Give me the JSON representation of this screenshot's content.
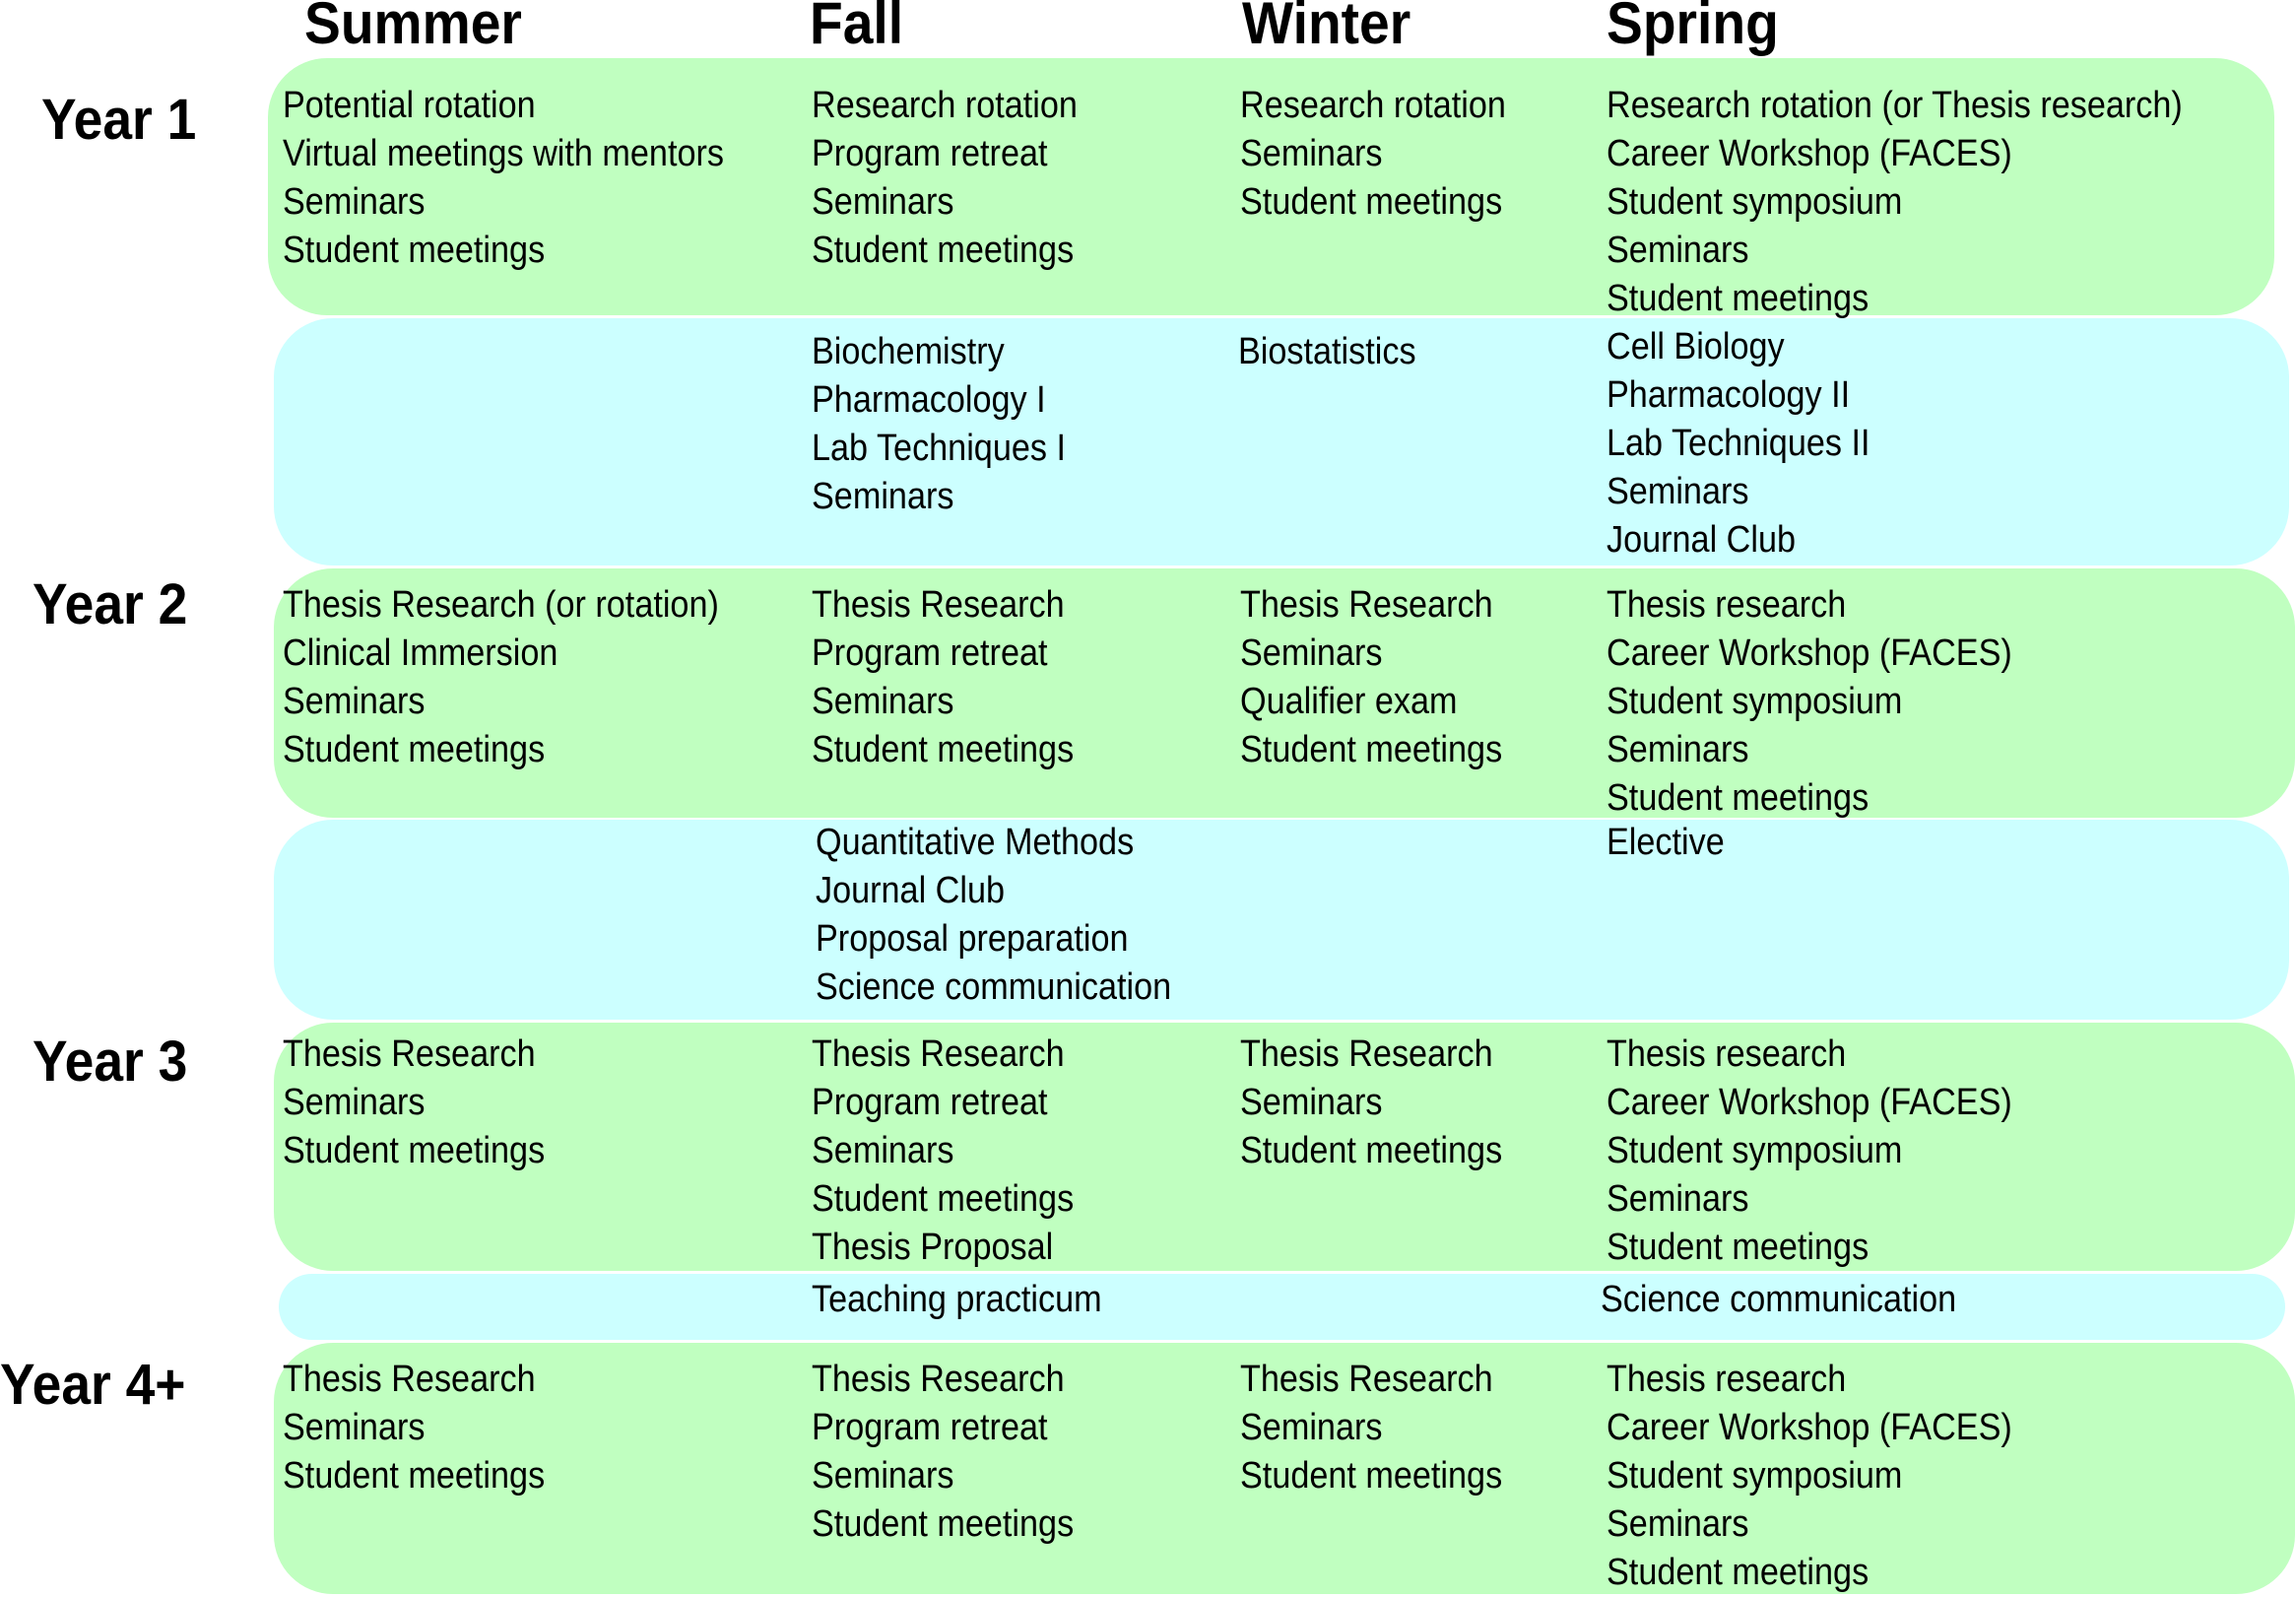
{
  "colors": {
    "activities_band": "#c0ffc0",
    "courses_band": "#ccffff"
  },
  "seasons": [
    "Summer",
    "Fall",
    "Winter",
    "Spring"
  ],
  "years": [
    "Year 1",
    "Year 2",
    "Year 3",
    "Year 4+"
  ],
  "rows": [
    {
      "type": "activities",
      "year": "Year 1",
      "cells": [
        [
          "Potential rotation",
          "Virtual meetings with mentors",
          "Seminars",
          "Student meetings"
        ],
        [
          "Research rotation",
          "Program retreat",
          "Seminars",
          "Student meetings"
        ],
        [
          "Research rotation",
          "Seminars",
          "Student meetings"
        ],
        [
          "Research rotation (or Thesis research)",
          "Career Workshop (FACES)",
          "Student symposium",
          "Seminars",
          "Student meetings"
        ]
      ]
    },
    {
      "type": "courses",
      "year": "Year 1",
      "cells": [
        [],
        [
          "Biochemistry",
          "Pharmacology I",
          "Lab Techniques I",
          "Seminars"
        ],
        [
          "Biostatistics"
        ],
        [
          "Cell Biology",
          "Pharmacology II",
          "Lab Techniques II",
          "Seminars",
          "Journal Club"
        ]
      ]
    },
    {
      "type": "activities",
      "year": "Year 2",
      "cells": [
        [
          "Thesis Research (or rotation)",
          "Clinical Immersion",
          "Seminars",
          "Student meetings"
        ],
        [
          "Thesis Research",
          "Program retreat",
          "Seminars",
          "Student meetings"
        ],
        [
          "Thesis Research",
          "Seminars",
          "Qualifier exam",
          "Student meetings"
        ],
        [
          "Thesis research",
          "Career Workshop (FACES)",
          "Student symposium",
          "Seminars",
          "Student meetings"
        ]
      ]
    },
    {
      "type": "courses",
      "year": "Year 2",
      "cells": [
        [],
        [
          "Quantitative Methods",
          "Journal Club",
          "Proposal preparation",
          "Science communication"
        ],
        [],
        [
          "Elective"
        ]
      ]
    },
    {
      "type": "activities",
      "year": "Year 3",
      "cells": [
        [
          "Thesis Research",
          "Seminars",
          "Student meetings"
        ],
        [
          "Thesis Research",
          "Program retreat",
          "Seminars",
          "Student meetings",
          "Thesis Proposal"
        ],
        [
          "Thesis Research",
          "Seminars",
          "Student meetings"
        ],
        [
          "Thesis research",
          "Career Workshop (FACES)",
          "Student symposium",
          "Seminars",
          "Student meetings"
        ]
      ]
    },
    {
      "type": "courses",
      "year": "Year 3",
      "cells": [
        [],
        [
          "Teaching practicum"
        ],
        [],
        [
          "Science communication"
        ]
      ]
    },
    {
      "type": "activities",
      "year": "Year 4+",
      "cells": [
        [
          "Thesis Research",
          "Seminars",
          "Student meetings"
        ],
        [
          "Thesis Research",
          "Program retreat",
          "Seminars",
          "Student meetings"
        ],
        [
          "Thesis Research",
          "Seminars",
          "Student meetings"
        ],
        [
          "Thesis research",
          "Career Workshop (FACES)",
          "Student symposium",
          "Seminars",
          "Student meetings"
        ]
      ]
    }
  ]
}
